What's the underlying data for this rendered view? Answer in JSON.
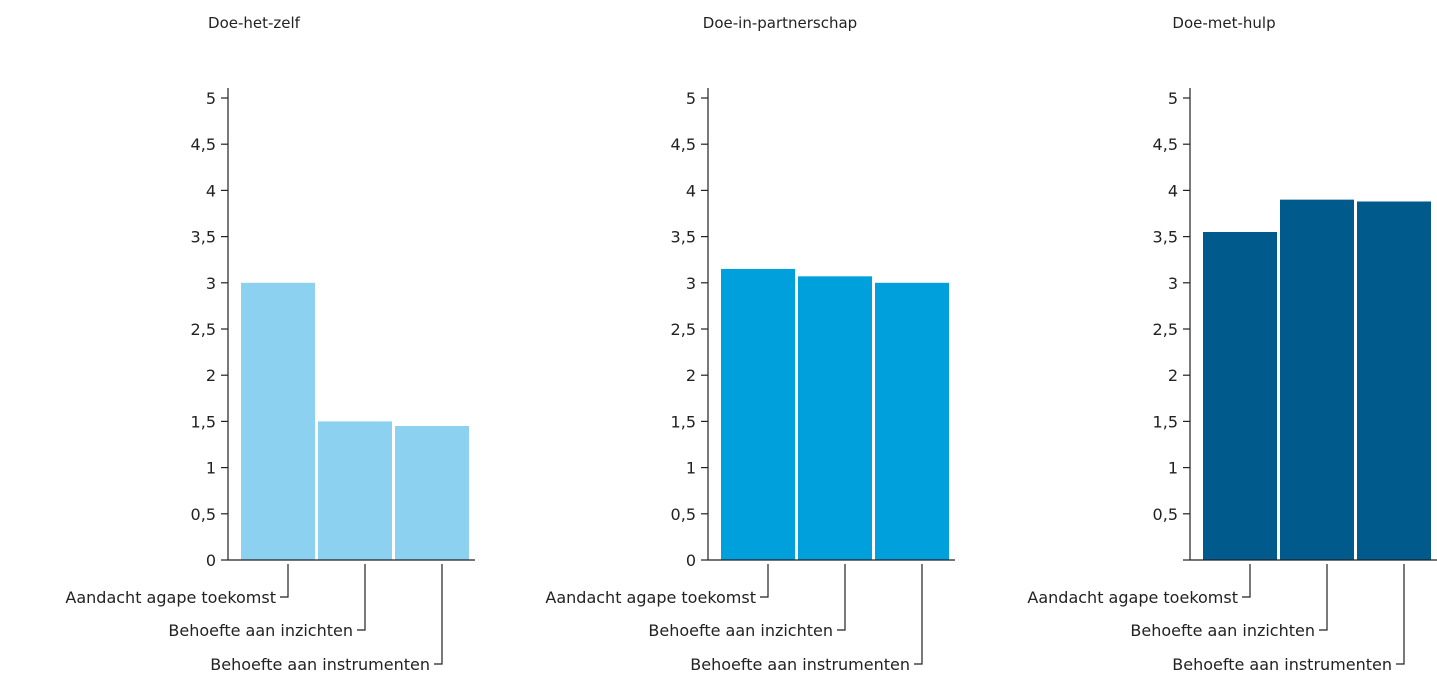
{
  "chart_data": [
    {
      "type": "bar",
      "title": "Doe-het-zelf",
      "categories": [
        "Aandacht agape toekomst",
        "Behoefte aan inzichten",
        "Behoefte aan instrumenten"
      ],
      "values": [
        3.0,
        1.5,
        1.45
      ],
      "ylim": [
        0,
        5
      ],
      "yticks": [
        "0",
        "0,5",
        "1",
        "1,5",
        "2",
        "2,5",
        "3",
        "3,5",
        "4",
        "4,5",
        "5"
      ],
      "color": "#8dd1f0",
      "grid": false,
      "legend": "none"
    },
    {
      "type": "bar",
      "title": "Doe-in-partnerschap",
      "categories": [
        "Aandacht agape toekomst",
        "Behoefte aan inzichten",
        "Behoefte aan instrumenten"
      ],
      "values": [
        3.15,
        3.07,
        3.0
      ],
      "ylim": [
        0,
        5
      ],
      "yticks": [
        "0",
        "0,5",
        "1",
        "1,5",
        "2",
        "2,5",
        "3",
        "3,5",
        "4",
        "4,5",
        "5"
      ],
      "color": "#00a0dc",
      "grid": false,
      "legend": "none"
    },
    {
      "type": "bar",
      "title": "Doe-met-hulp",
      "categories": [
        "Aandacht agape toekomst",
        "Behoefte aan inzichten",
        "Behoefte aan instrumenten"
      ],
      "values": [
        3.55,
        3.9,
        3.88
      ],
      "ylim": [
        0,
        5
      ],
      "yticks": [
        "",
        "0,5",
        "1",
        "1,5",
        "2",
        "2,5",
        "3",
        "3,5",
        "4",
        "4,5",
        "5"
      ],
      "color": "#005a8c",
      "grid": false,
      "legend": "none"
    }
  ]
}
